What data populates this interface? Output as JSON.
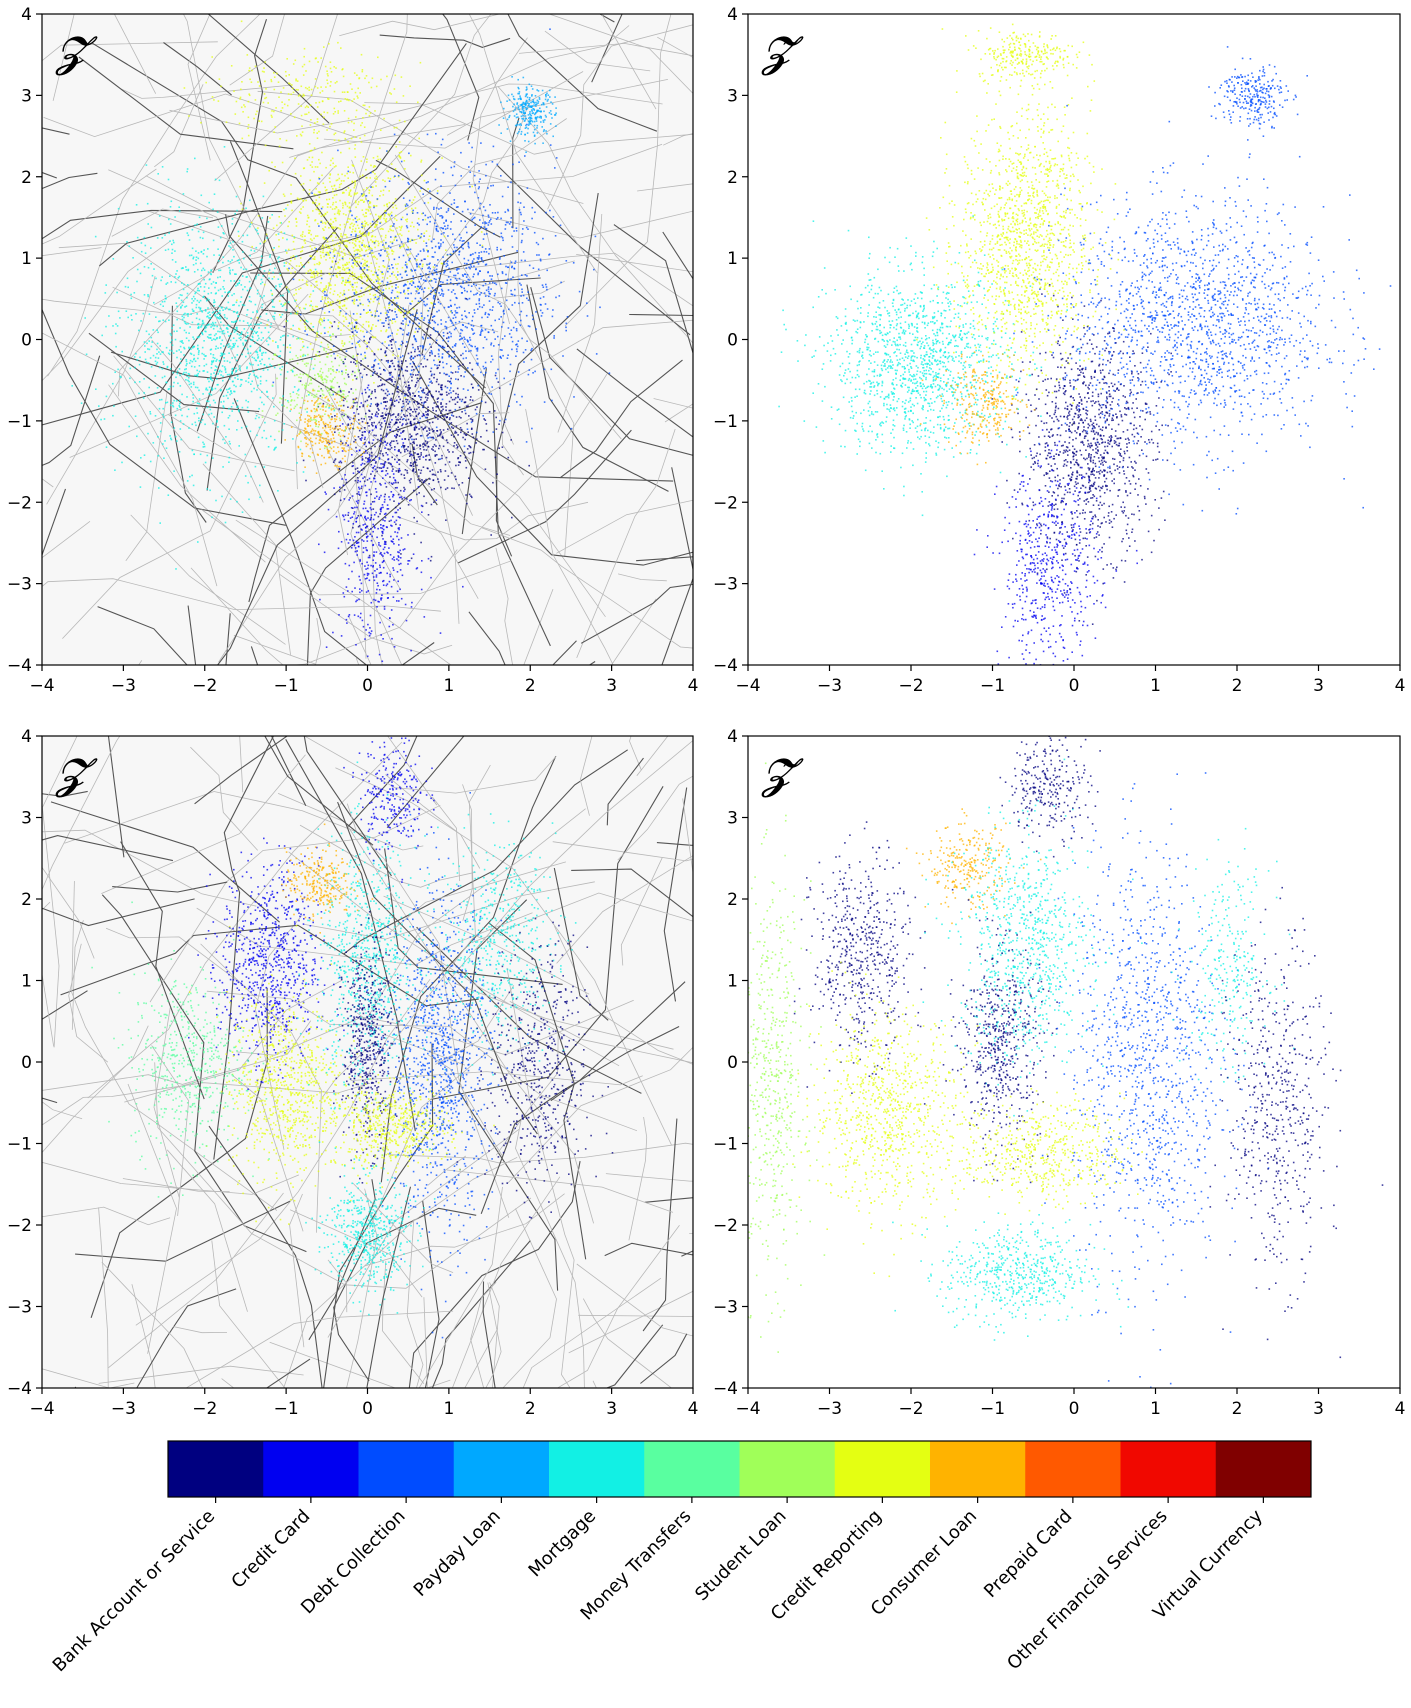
{
  "chart_data": [
    {
      "type": "scatter",
      "panel": "top-left",
      "title": "𝓩",
      "background": "voronoi-edges",
      "xlim": [
        -4,
        4
      ],
      "ylim": [
        -4,
        4
      ],
      "xticks": [
        -4,
        -3,
        -2,
        -1,
        0,
        1,
        2,
        3,
        4
      ],
      "yticks": [
        -4,
        -3,
        -2,
        -1,
        0,
        1,
        2,
        3,
        4
      ],
      "clusters": [
        {
          "category": "Mortgage",
          "center": [
            -1.9,
            0.0
          ],
          "spread": [
            0.55,
            0.75
          ],
          "weight": 5
        },
        {
          "category": "Credit Reporting",
          "center": [
            -0.2,
            1.1
          ],
          "spread": [
            0.45,
            0.65
          ],
          "weight": 5
        },
        {
          "category": "Debt Collection",
          "center": [
            1.0,
            0.6
          ],
          "spread": [
            0.65,
            0.75
          ],
          "weight": 5
        },
        {
          "category": "Bank Account or Service",
          "center": [
            0.5,
            -1.0
          ],
          "spread": [
            0.45,
            0.55
          ],
          "weight": 4
        },
        {
          "category": "Credit Card",
          "center": [
            0.1,
            -2.4
          ],
          "spread": [
            0.25,
            0.7
          ],
          "weight": 2
        },
        {
          "category": "Student Loan",
          "center": [
            -0.6,
            -0.6
          ],
          "spread": [
            0.25,
            0.3
          ],
          "weight": 1
        },
        {
          "category": "Consumer Loan",
          "center": [
            -0.5,
            -1.1
          ],
          "spread": [
            0.2,
            0.2
          ],
          "weight": 1
        },
        {
          "category": "Credit Reporting",
          "center": [
            -0.8,
            3.0
          ],
          "spread": [
            0.6,
            0.3
          ],
          "weight": 1
        },
        {
          "category": "Payday Loan",
          "center": [
            2.0,
            2.8
          ],
          "spread": [
            0.15,
            0.15
          ],
          "weight": 1
        }
      ]
    },
    {
      "type": "scatter",
      "panel": "top-right",
      "title": "𝓩̃",
      "background": "none",
      "xlim": [
        -4,
        4
      ],
      "ylim": [
        -4,
        4
      ],
      "xticks": [
        -4,
        -3,
        -2,
        -1,
        0,
        1,
        2,
        3,
        4
      ],
      "yticks": [
        -4,
        -3,
        -2,
        -1,
        0,
        1,
        2,
        3,
        4
      ],
      "clusters": [
        {
          "category": "Mortgage",
          "center": [
            -1.9,
            -0.3
          ],
          "spread": [
            0.55,
            0.55
          ],
          "weight": 5
        },
        {
          "category": "Credit Reporting",
          "center": [
            -0.6,
            1.2
          ],
          "spread": [
            0.4,
            0.8
          ],
          "weight": 5
        },
        {
          "category": "Credit Reporting",
          "center": [
            -0.6,
            3.5
          ],
          "spread": [
            0.3,
            0.15
          ],
          "weight": 1
        },
        {
          "category": "Debt Collection",
          "center": [
            1.5,
            0.2
          ],
          "spread": [
            0.8,
            0.75
          ],
          "weight": 6
        },
        {
          "category": "Bank Account or Service",
          "center": [
            0.2,
            -1.3
          ],
          "spread": [
            0.4,
            0.65
          ],
          "weight": 4
        },
        {
          "category": "Credit Card",
          "center": [
            -0.3,
            -2.8
          ],
          "spread": [
            0.3,
            0.6
          ],
          "weight": 2
        },
        {
          "category": "Consumer Loan",
          "center": [
            -1.1,
            -0.8
          ],
          "spread": [
            0.25,
            0.25
          ],
          "weight": 1
        },
        {
          "category": "Debt Collection",
          "center": [
            2.2,
            3.0
          ],
          "spread": [
            0.2,
            0.2
          ],
          "weight": 1
        }
      ]
    },
    {
      "type": "scatter",
      "panel": "bottom-left",
      "title": "𝓩",
      "background": "voronoi-edges",
      "xlim": [
        -4,
        4
      ],
      "ylim": [
        -4,
        4
      ],
      "xticks": [
        -4,
        -3,
        -2,
        -1,
        0,
        1,
        2,
        3,
        4
      ],
      "yticks": [
        -4,
        -3,
        -2,
        -1,
        0,
        1,
        2,
        3,
        4
      ],
      "clusters": [
        {
          "category": "Credit Card",
          "center": [
            -1.2,
            1.2
          ],
          "spread": [
            0.3,
            0.6
          ],
          "weight": 3
        },
        {
          "category": "Credit Reporting",
          "center": [
            -1.0,
            -0.3
          ],
          "spread": [
            0.35,
            0.55
          ],
          "weight": 3
        },
        {
          "category": "Mortgage",
          "center": [
            0.0,
            1.2
          ],
          "spread": [
            0.3,
            0.75
          ],
          "weight": 3
        },
        {
          "category": "Bank Account or Service",
          "center": [
            0.0,
            0.2
          ],
          "spread": [
            0.15,
            0.6
          ],
          "weight": 2
        },
        {
          "category": "Debt Collection",
          "center": [
            0.9,
            0.0
          ],
          "spread": [
            0.3,
            1.0
          ],
          "weight": 4
        },
        {
          "category": "Credit Reporting",
          "center": [
            0.3,
            -0.8
          ],
          "spread": [
            0.35,
            0.25
          ],
          "weight": 2
        },
        {
          "category": "Mortgage",
          "center": [
            0.0,
            -2.1
          ],
          "spread": [
            0.25,
            0.35
          ],
          "weight": 2
        },
        {
          "category": "Mortgage",
          "center": [
            1.6,
            1.5
          ],
          "spread": [
            0.35,
            0.6
          ],
          "weight": 2
        },
        {
          "category": "Bank Account or Service",
          "center": [
            2.1,
            -0.1
          ],
          "spread": [
            0.3,
            0.75
          ],
          "weight": 2
        },
        {
          "category": "Money Transfers",
          "center": [
            -2.2,
            0.0
          ],
          "spread": [
            0.35,
            0.55
          ],
          "weight": 2
        },
        {
          "category": "Consumer Loan",
          "center": [
            -0.6,
            2.2
          ],
          "spread": [
            0.2,
            0.2
          ],
          "weight": 1
        },
        {
          "category": "Credit Card",
          "center": [
            0.3,
            3.3
          ],
          "spread": [
            0.2,
            0.35
          ],
          "weight": 1
        }
      ]
    },
    {
      "type": "scatter",
      "panel": "bottom-right",
      "title": "𝓩̃",
      "background": "none",
      "xlim": [
        -4,
        4
      ],
      "ylim": [
        -4,
        4
      ],
      "xticks": [
        -4,
        -3,
        -2,
        -1,
        0,
        1,
        2,
        3,
        4
      ],
      "yticks": [
        -4,
        -3,
        -2,
        -1,
        0,
        1,
        2,
        3,
        4
      ],
      "clusters": [
        {
          "category": "Student Loan",
          "center": [
            -3.7,
            -0.3
          ],
          "spread": [
            0.2,
            1.2
          ],
          "weight": 2
        },
        {
          "category": "Bank Account or Service",
          "center": [
            -2.6,
            1.3
          ],
          "spread": [
            0.3,
            0.6
          ],
          "weight": 2
        },
        {
          "category": "Credit Reporting",
          "center": [
            -2.3,
            -0.6
          ],
          "spread": [
            0.45,
            0.6
          ],
          "weight": 3
        },
        {
          "category": "Consumer Loan",
          "center": [
            -1.3,
            2.4
          ],
          "spread": [
            0.25,
            0.25
          ],
          "weight": 1
        },
        {
          "category": "Mortgage",
          "center": [
            -0.6,
            1.4
          ],
          "spread": [
            0.4,
            0.7
          ],
          "weight": 3
        },
        {
          "category": "Bank Account or Service",
          "center": [
            -0.9,
            0.2
          ],
          "spread": [
            0.25,
            0.6
          ],
          "weight": 2
        },
        {
          "category": "Credit Reporting",
          "center": [
            -0.4,
            -1.1
          ],
          "spread": [
            0.5,
            0.3
          ],
          "weight": 2
        },
        {
          "category": "Mortgage",
          "center": [
            -0.7,
            -2.6
          ],
          "spread": [
            0.45,
            0.3
          ],
          "weight": 2
        },
        {
          "category": "Debt Collection",
          "center": [
            0.9,
            0.0
          ],
          "spread": [
            0.45,
            1.3
          ],
          "weight": 4
        },
        {
          "category": "Mortgage",
          "center": [
            1.9,
            1.2
          ],
          "spread": [
            0.25,
            0.6
          ],
          "weight": 1
        },
        {
          "category": "Bank Account or Service",
          "center": [
            2.5,
            -0.6
          ],
          "spread": [
            0.3,
            1.0
          ],
          "weight": 2
        },
        {
          "category": "Bank Account or Service",
          "center": [
            -0.3,
            3.4
          ],
          "spread": [
            0.25,
            0.3
          ],
          "weight": 1
        }
      ]
    }
  ],
  "colorbar": {
    "categories": [
      {
        "label": "Bank Account or Service",
        "color": "#000080"
      },
      {
        "label": "Credit Card",
        "color": "#0000f1"
      },
      {
        "label": "Debt Collection",
        "color": "#004cff"
      },
      {
        "label": "Payday Loan",
        "color": "#00a8ff"
      },
      {
        "label": "Mortgage",
        "color": "#12f0e4"
      },
      {
        "label": "Money Transfers",
        "color": "#59ffa0"
      },
      {
        "label": "Student Loan",
        "color": "#a0ff59"
      },
      {
        "label": "Credit Reporting",
        "color": "#e4ff12"
      },
      {
        "label": "Consumer Loan",
        "color": "#ffb300"
      },
      {
        "label": "Prepaid Card",
        "color": "#ff5900"
      },
      {
        "label": "Other Financial Services",
        "color": "#f10800"
      },
      {
        "label": "Virtual Currency",
        "color": "#800000"
      }
    ]
  }
}
